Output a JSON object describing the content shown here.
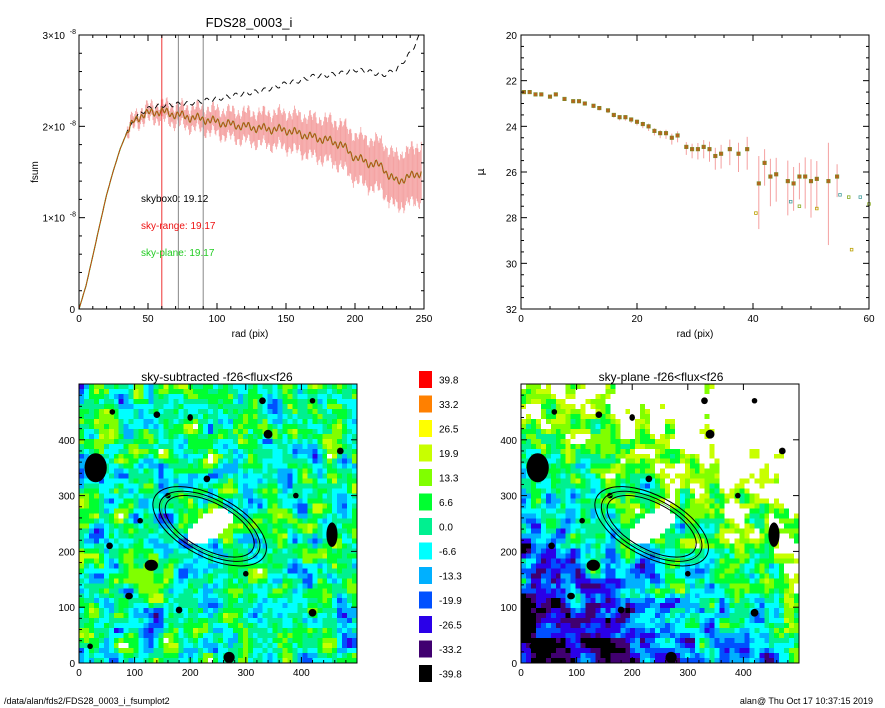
{
  "footer": {
    "path": "/data/alan/fds2/FDS28_0003_i_fsumplot2",
    "stamp": "alan@  Thu Oct 17 10:37:15 2019"
  },
  "colors": {
    "profile": "#b5651d",
    "sky_range": "#ee1111",
    "sky_plane": "#22dd22",
    "errorbar": "#f4a0a0",
    "vline_red": "#ee3333",
    "vline_gray": "#888888"
  },
  "chart_data": [
    {
      "id": "fsum",
      "type": "line",
      "title": "FDS28_0003_i",
      "xlabel": "rad (pix)",
      "ylabel": "fsum",
      "xlim": [
        0,
        250
      ],
      "ylim": [
        0,
        3e-08
      ],
      "xticks": [
        "0",
        "50",
        "100",
        "150",
        "200",
        "250"
      ],
      "yticks": [
        {
          "value": 0,
          "mant": "0",
          "exp": ""
        },
        {
          "value": 1e-08,
          "mant": "1×10",
          "exp": "-8"
        },
        {
          "value": 2e-08,
          "mant": "2×10",
          "exp": "-8"
        },
        {
          "value": 3e-08,
          "mant": "3×10",
          "exp": "-8"
        }
      ],
      "vlines": [
        {
          "x": 60,
          "color": "red"
        },
        {
          "x": 72,
          "color": "gray"
        },
        {
          "x": 90,
          "color": "gray"
        }
      ],
      "annotations": [
        {
          "text": "skybox0: 19.12",
          "color": "black"
        },
        {
          "text": "sky-range: 19.17",
          "color": "red"
        },
        {
          "text": "sky-plane: 19.17",
          "color": "green"
        }
      ],
      "series": [
        {
          "style": "solid",
          "x": [
            0,
            5,
            10,
            15,
            20,
            25,
            30,
            35,
            40,
            45,
            50,
            55,
            60,
            70,
            80,
            90,
            100,
            110,
            120,
            130,
            140,
            150,
            160,
            170,
            180,
            190,
            200,
            210,
            220,
            225,
            230,
            240,
            248
          ],
          "y": [
            0,
            2.5e-09,
            5.8e-09,
            9.2e-09,
            1.25e-08,
            1.52e-08,
            1.76e-08,
            1.94e-08,
            2.06e-08,
            2.12e-08,
            2.14e-08,
            2.16e-08,
            2.16e-08,
            2.13e-08,
            2.1e-08,
            2.08e-08,
            2.05e-08,
            2.02e-08,
            2e-08,
            1.98e-08,
            1.97e-08,
            1.96e-08,
            1.92e-08,
            1.88e-08,
            1.85e-08,
            1.8e-08,
            1.66e-08,
            1.6e-08,
            1.56e-08,
            1.45e-08,
            1.4e-08,
            1.45e-08,
            1.5e-08
          ],
          "err_start": 35
        },
        {
          "style": "dashed",
          "x": [
            0,
            5,
            10,
            15,
            20,
            25,
            30,
            35,
            40,
            45,
            50,
            55,
            60,
            70,
            80,
            90,
            100,
            110,
            120,
            130,
            140,
            150,
            160,
            170,
            180,
            190,
            200,
            210,
            220,
            230,
            240,
            248
          ],
          "y": [
            0,
            2.5e-09,
            5.8e-09,
            9.2e-09,
            1.25e-08,
            1.52e-08,
            1.76e-08,
            1.95e-08,
            2.08e-08,
            2.15e-08,
            2.19e-08,
            2.21e-08,
            2.23e-08,
            2.24e-08,
            2.25e-08,
            2.28e-08,
            2.3e-08,
            2.33e-08,
            2.36e-08,
            2.38e-08,
            2.42e-08,
            2.47e-08,
            2.5e-08,
            2.55e-08,
            2.56e-08,
            2.58e-08,
            2.62e-08,
            2.6e-08,
            2.56e-08,
            2.62e-08,
            2.8e-08,
            3.02e-08
          ]
        }
      ]
    },
    {
      "id": "mu",
      "type": "scatter",
      "xlabel": "rad (pix)",
      "ylabel": "μ",
      "xlim": [
        0,
        60
      ],
      "ylim": [
        32,
        20
      ],
      "xticks": [
        "0",
        "20",
        "40",
        "60"
      ],
      "yticks": [
        "20",
        "22",
        "24",
        "26",
        "28",
        "30",
        "32"
      ],
      "points": {
        "x": [
          0.5,
          1.5,
          2.5,
          3.5,
          5,
          6,
          7.5,
          9,
          10,
          11,
          12.5,
          13.5,
          15,
          16,
          17,
          18,
          19,
          20,
          21,
          22,
          23,
          24,
          25,
          26,
          27,
          28.5,
          29.5,
          30.5,
          31.5,
          32.5,
          33.5,
          34.5,
          36,
          37.5,
          39,
          41,
          42,
          43,
          44,
          46,
          47,
          48,
          49,
          50,
          51,
          53,
          54.5
        ],
        "y": [
          22.5,
          22.5,
          22.6,
          22.6,
          22.7,
          22.6,
          22.8,
          22.9,
          22.9,
          23.0,
          23.1,
          23.2,
          23.3,
          23.5,
          23.6,
          23.6,
          23.7,
          23.8,
          23.9,
          24.0,
          24.2,
          24.3,
          24.3,
          24.5,
          24.4,
          24.9,
          25.0,
          25.0,
          24.9,
          25.0,
          25.3,
          25.2,
          25.0,
          25.2,
          25.0,
          26.5,
          25.6,
          26.2,
          26.1,
          26.4,
          26.5,
          26.2,
          26.2,
          26.4,
          26.3,
          26.4,
          26.2
        ],
        "err": [
          0.05,
          0.05,
          0.05,
          0.06,
          0.06,
          0.07,
          0.07,
          0.08,
          0.08,
          0.09,
          0.1,
          0.1,
          0.12,
          0.12,
          0.14,
          0.15,
          0.15,
          0.16,
          0.18,
          0.2,
          0.2,
          0.22,
          0.25,
          0.3,
          0.3,
          0.35,
          0.4,
          0.45,
          0.5,
          0.55,
          0.6,
          0.65,
          0.7,
          0.8,
          0.9,
          2.0,
          1.0,
          1.3,
          1.2,
          1.5,
          1.2,
          1.0,
          1.4,
          1.6,
          1.3,
          2.8,
          0.9
        ]
      },
      "scatter_small": {
        "x": [
          40.5,
          46.5,
          48,
          51,
          55,
          56.5,
          57,
          58.5,
          60
        ],
        "y": [
          27.8,
          27.3,
          27.5,
          27.6,
          27.0,
          27.1,
          29.4,
          27.1,
          27.4
        ]
      }
    },
    {
      "id": "map_left",
      "type": "heatmap",
      "title": "sky-subtracted -f26<flux<f26",
      "xlim": [
        0,
        500
      ],
      "ylim": [
        0,
        500
      ],
      "xticks": [
        "0",
        "100",
        "200",
        "300",
        "400"
      ],
      "yticks": [
        "0",
        "100",
        "200",
        "300",
        "400"
      ],
      "sky_gradient": 0.0
    },
    {
      "id": "map_right",
      "type": "heatmap",
      "title": "sky-plane -f26<flux<f26",
      "xlim": [
        0,
        500
      ],
      "ylim": [
        0,
        500
      ],
      "xticks": [
        "0",
        "100",
        "200",
        "300",
        "400"
      ],
      "yticks": [
        "0",
        "100",
        "200",
        "300",
        "400"
      ],
      "sky_gradient": 1.0
    },
    {
      "id": "colorbar",
      "type": "colorbar",
      "labels": [
        "39.8",
        "33.2",
        "26.5",
        "19.9",
        "13.3",
        "6.6",
        "0.0",
        "-6.6",
        "-13.3",
        "-19.9",
        "-26.5",
        "-33.2",
        "-39.8"
      ],
      "colors": [
        "#ff0000",
        "#ff8000",
        "#ffff00",
        "#c8ff00",
        "#80ff00",
        "#00ff30",
        "#00f090",
        "#00ffff",
        "#00b0ff",
        "#0050ff",
        "#2a00e8",
        "#400070",
        "#000000"
      ]
    }
  ]
}
